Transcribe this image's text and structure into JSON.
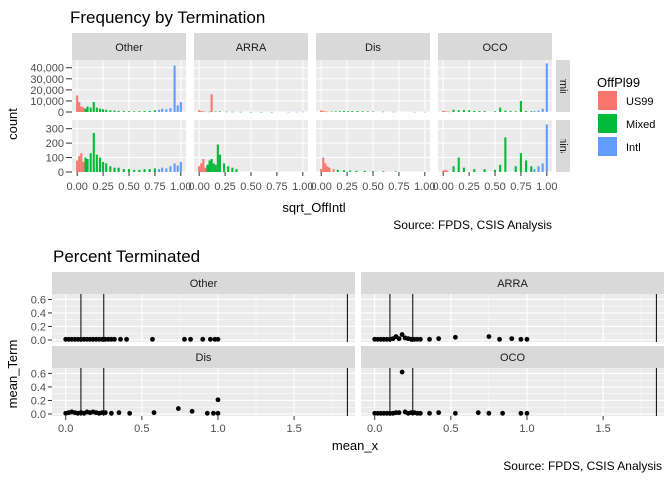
{
  "colors": {
    "panel_bg": "#EBEBEB",
    "strip_bg": "#D9D9D9",
    "grid_major": "#FFFFFF",
    "text": "#000000",
    "tick_text": "#4D4D4D",
    "us99": "#F8766D",
    "mixed": "#00BA38",
    "intl": "#619CFF",
    "point": "#000000",
    "vline": "#000000"
  },
  "chart_data": [
    {
      "type": "bar",
      "title": "Frequency by Termination",
      "xlabel": "sqrt_OffIntl",
      "ylabel": "count",
      "source": "Source: FPDS, CSIS Analysis",
      "facet_columns": [
        "Other",
        "ARRA",
        "Dis",
        "OCO"
      ],
      "facet_rows": [
        "Unterminated",
        "Terminated"
      ],
      "xlim": [
        -0.05,
        1.05
      ],
      "x_ticks": [
        "0.00",
        "0.25",
        "0.50",
        "0.75",
        "1.00"
      ],
      "rows": [
        {
          "label": "Unterminated",
          "ylim": [
            0,
            47000
          ],
          "y_ticks": [
            {
              "value": 0,
              "label": "0"
            },
            {
              "value": 10000,
              "label": "10,000"
            },
            {
              "value": 20000,
              "label": "20,000"
            },
            {
              "value": 30000,
              "label": "30,000"
            },
            {
              "value": 40000,
              "label": "40,000"
            }
          ]
        },
        {
          "label": "Terminated",
          "ylim": [
            0,
            360
          ],
          "y_ticks": [
            {
              "value": 0,
              "label": "0"
            },
            {
              "value": 100,
              "label": "100"
            },
            {
              "value": 200,
              "label": "200"
            },
            {
              "value": 300,
              "label": "300"
            }
          ]
        }
      ],
      "legend": {
        "title": "OffPl99",
        "position": "right",
        "entries": [
          {
            "key": "us99",
            "label": "US99"
          },
          {
            "key": "mixed",
            "label": "Mixed"
          },
          {
            "key": "intl",
            "label": "Intl"
          }
        ]
      },
      "panels": [
        {
          "row": "Unterminated",
          "col": "Other",
          "bars": [
            {
              "group": "us99",
              "x": [
                0.0,
                0.02,
                0.04,
                0.06
              ],
              "y": [
                15000,
                9000,
                5000,
                4000
              ]
            },
            {
              "group": "mixed",
              "x": [
                0.08,
                0.1,
                0.13,
                0.16,
                0.19,
                0.22,
                0.25,
                0.28,
                0.32,
                0.36,
                0.4,
                0.45,
                0.5,
                0.55,
                0.6,
                0.65,
                0.7,
                0.75
              ],
              "y": [
                3000,
                5000,
                4000,
                9000,
                4000,
                3000,
                2500,
                2000,
                1500,
                1200,
                1000,
                800,
                700,
                600,
                700,
                800,
                1000,
                1500
              ]
            },
            {
              "group": "intl",
              "x": [
                0.79,
                0.82,
                0.86,
                0.9,
                0.94,
                0.97,
                1.0
              ],
              "y": [
                2000,
                3000,
                2500,
                3500,
                42000,
                6000,
                9000
              ]
            }
          ]
        },
        {
          "row": "Unterminated",
          "col": "ARRA",
          "bars": [
            {
              "group": "us99",
              "x": [
                0.0,
                0.02,
                0.04,
                0.06,
                0.12
              ],
              "y": [
                1500,
                800,
                500,
                300,
                16000
              ]
            },
            {
              "group": "mixed",
              "x": [
                0.1,
                0.16,
                0.2,
                0.26,
                0.32,
                0.4,
                0.5,
                0.6,
                0.7
              ],
              "y": [
                300,
                400,
                500,
                300,
                200,
                150,
                100,
                100,
                80
              ]
            },
            {
              "group": "intl",
              "x": [
                0.86,
                0.94,
                1.0
              ],
              "y": [
                100,
                150,
                300
              ]
            }
          ]
        },
        {
          "row": "Unterminated",
          "col": "Dis",
          "bars": [
            {
              "group": "us99",
              "x": [
                0.0,
                0.02,
                0.04,
                0.06
              ],
              "y": [
                1500,
                800,
                500,
                300
              ]
            },
            {
              "group": "mixed",
              "x": [
                0.1,
                0.14,
                0.18,
                0.22,
                0.26,
                0.3,
                0.35,
                0.4,
                0.45,
                0.5,
                0.6,
                0.7
              ],
              "y": [
                400,
                500,
                600,
                800,
                700,
                800,
                800,
                600,
                500,
                400,
                300,
                200
              ]
            },
            {
              "group": "intl",
              "x": [
                0.9,
                1.0
              ],
              "y": [
                100,
                150
              ]
            }
          ]
        },
        {
          "row": "Unterminated",
          "col": "OCO",
          "bars": [
            {
              "group": "us99",
              "x": [
                0.0,
                0.02,
                0.04,
                0.06
              ],
              "y": [
                1000,
                600,
                400,
                300
              ]
            },
            {
              "group": "mixed",
              "x": [
                0.1,
                0.15,
                0.2,
                0.25,
                0.3,
                0.35,
                0.4,
                0.5,
                0.55,
                0.6,
                0.65,
                0.7,
                0.75,
                0.8,
                0.85
              ],
              "y": [
                2000,
                1500,
                1800,
                1500,
                1000,
                800,
                800,
                600,
                4000,
                1200,
                800,
                600,
                10000,
                800,
                600
              ]
            },
            {
              "group": "intl",
              "x": [
                0.88,
                0.92,
                0.96,
                1.0
              ],
              "y": [
                800,
                1200,
                3000,
                44000
              ]
            }
          ]
        },
        {
          "row": "Terminated",
          "col": "Other",
          "bars": [
            {
              "group": "us99",
              "x": [
                0.0,
                0.02,
                0.04,
                0.06
              ],
              "y": [
                80,
                110,
                130,
                70
              ]
            },
            {
              "group": "mixed",
              "x": [
                0.08,
                0.1,
                0.13,
                0.16,
                0.19,
                0.22,
                0.25,
                0.28,
                0.32,
                0.36,
                0.4,
                0.45,
                0.5,
                0.55,
                0.6,
                0.65,
                0.7,
                0.75
              ],
              "y": [
                100,
                90,
                130,
                270,
                120,
                100,
                70,
                60,
                40,
                30,
                30,
                20,
                20,
                15,
                15,
                20,
                20,
                25
              ]
            },
            {
              "group": "intl",
              "x": [
                0.79,
                0.82,
                0.86,
                0.9,
                0.94,
                0.97,
                1.0
              ],
              "y": [
                20,
                30,
                25,
                40,
                60,
                45,
                70
              ]
            }
          ]
        },
        {
          "row": "Terminated",
          "col": "ARRA",
          "bars": [
            {
              "group": "us99",
              "x": [
                0.0,
                0.02,
                0.04,
                0.06
              ],
              "y": [
                40,
                60,
                90,
                30
              ]
            },
            {
              "group": "mixed",
              "x": [
                0.08,
                0.1,
                0.12,
                0.14,
                0.16,
                0.18,
                0.2,
                0.24,
                0.28,
                0.32,
                0.36
              ],
              "y": [
                50,
                80,
                90,
                60,
                50,
                190,
                120,
                60,
                40,
                30,
                20
              ]
            }
          ]
        },
        {
          "row": "Terminated",
          "col": "Dis",
          "bars": [
            {
              "group": "us99",
              "x": [
                0.0,
                0.02,
                0.04,
                0.06,
                0.08,
                0.12
              ],
              "y": [
                20,
                100,
                60,
                40,
                30,
                20
              ]
            },
            {
              "group": "mixed",
              "x": [
                0.16,
                0.22,
                0.28,
                0.34,
                0.42,
                0.5,
                0.6,
                0.72
              ],
              "y": [
                15,
                12,
                10,
                8,
                8,
                6,
                5,
                4
              ]
            }
          ]
        },
        {
          "row": "Terminated",
          "col": "OCO",
          "bars": [
            {
              "group": "us99",
              "x": [
                0.0,
                0.02,
                0.04
              ],
              "y": [
                10,
                15,
                10
              ]
            },
            {
              "group": "mixed",
              "x": [
                0.1,
                0.15,
                0.2,
                0.3,
                0.4,
                0.5,
                0.55,
                0.6,
                0.7,
                0.75,
                0.8,
                0.85
              ],
              "y": [
                40,
                100,
                30,
                20,
                20,
                15,
                50,
                240,
                40,
                130,
                80,
                40
              ]
            },
            {
              "group": "intl",
              "x": [
                0.88,
                0.92,
                0.96,
                1.0
              ],
              "y": [
                20,
                40,
                60,
                330
              ]
            }
          ]
        }
      ]
    },
    {
      "type": "scatter",
      "title": "Percent Terminated",
      "xlabel": "mean_x",
      "ylabel": "mean_Term",
      "source": "Source: FPDS, CSIS Analysis",
      "facets": [
        "Other",
        "ARRA",
        "Dis",
        "OCO"
      ],
      "xlim": [
        -0.09,
        1.9
      ],
      "ylim": [
        -0.03,
        0.68
      ],
      "x_ticks": [
        {
          "value": 0,
          "label": "0.0"
        },
        {
          "value": 0.5,
          "label": "0.5"
        },
        {
          "value": 1,
          "label": "1.0"
        },
        {
          "value": 1.5,
          "label": "1.5"
        }
      ],
      "y_ticks": [
        {
          "value": 0,
          "label": "0.0"
        },
        {
          "value": 0.2,
          "label": "0.2"
        },
        {
          "value": 0.4,
          "label": "0.4"
        },
        {
          "value": 0.6,
          "label": "0.6"
        }
      ],
      "vlines": [
        0.1,
        0.25,
        1.85
      ],
      "panels": [
        {
          "facet": "Other",
          "x": [
            0.0,
            0.02,
            0.04,
            0.06,
            0.08,
            0.1,
            0.12,
            0.14,
            0.16,
            0.18,
            0.2,
            0.22,
            0.24,
            0.26,
            0.28,
            0.3,
            0.32,
            0.36,
            0.4,
            0.57,
            0.78,
            0.82,
            0.9,
            0.95,
            0.98,
            1.0
          ],
          "y": [
            0.01,
            0.01,
            0.01,
            0.01,
            0.01,
            0.01,
            0.01,
            0.01,
            0.01,
            0.01,
            0.01,
            0.01,
            0.01,
            0.01,
            0.01,
            0.01,
            0.01,
            0.01,
            0.01,
            0.01,
            0.01,
            0.01,
            0.01,
            0.01,
            0.01,
            0.01
          ]
        },
        {
          "facet": "ARRA",
          "x": [
            0.0,
            0.02,
            0.04,
            0.06,
            0.08,
            0.1,
            0.12,
            0.14,
            0.16,
            0.18,
            0.2,
            0.22,
            0.24,
            0.26,
            0.28,
            0.3,
            0.36,
            0.42,
            0.53,
            0.75,
            0.82,
            0.9,
            0.96,
            1.0
          ],
          "y": [
            0.01,
            0.01,
            0.01,
            0.01,
            0.01,
            0.01,
            0.02,
            0.05,
            0.02,
            0.08,
            0.03,
            0.02,
            0.01,
            0.01,
            0.01,
            0.01,
            0.01,
            0.02,
            0.04,
            0.05,
            0.01,
            0.02,
            0.01,
            0.01
          ]
        },
        {
          "facet": "Dis",
          "x": [
            0.0,
            0.02,
            0.04,
            0.06,
            0.08,
            0.1,
            0.12,
            0.14,
            0.16,
            0.18,
            0.2,
            0.22,
            0.24,
            0.26,
            0.3,
            0.35,
            0.42,
            0.58,
            0.74,
            0.83,
            0.93,
            0.97,
            1.0,
            1.0
          ],
          "y": [
            0.01,
            0.02,
            0.03,
            0.02,
            0.01,
            0.02,
            0.01,
            0.03,
            0.02,
            0.03,
            0.02,
            0.01,
            0.02,
            0.02,
            0.01,
            0.02,
            0.01,
            0.02,
            0.08,
            0.04,
            0.01,
            0.01,
            0.01,
            0.21
          ]
        },
        {
          "facet": "OCO",
          "x": [
            0.0,
            0.02,
            0.04,
            0.06,
            0.08,
            0.1,
            0.12,
            0.14,
            0.16,
            0.18,
            0.2,
            0.22,
            0.24,
            0.26,
            0.28,
            0.3,
            0.36,
            0.42,
            0.53,
            0.68,
            0.75,
            0.84,
            0.96,
            1.0
          ],
          "y": [
            0.01,
            0.01,
            0.01,
            0.01,
            0.01,
            0.01,
            0.01,
            0.02,
            0.02,
            0.62,
            0.03,
            0.01,
            0.02,
            0.02,
            0.01,
            0.01,
            0.01,
            0.02,
            0.01,
            0.02,
            0.01,
            0.01,
            0.01,
            0.01
          ]
        }
      ]
    }
  ]
}
